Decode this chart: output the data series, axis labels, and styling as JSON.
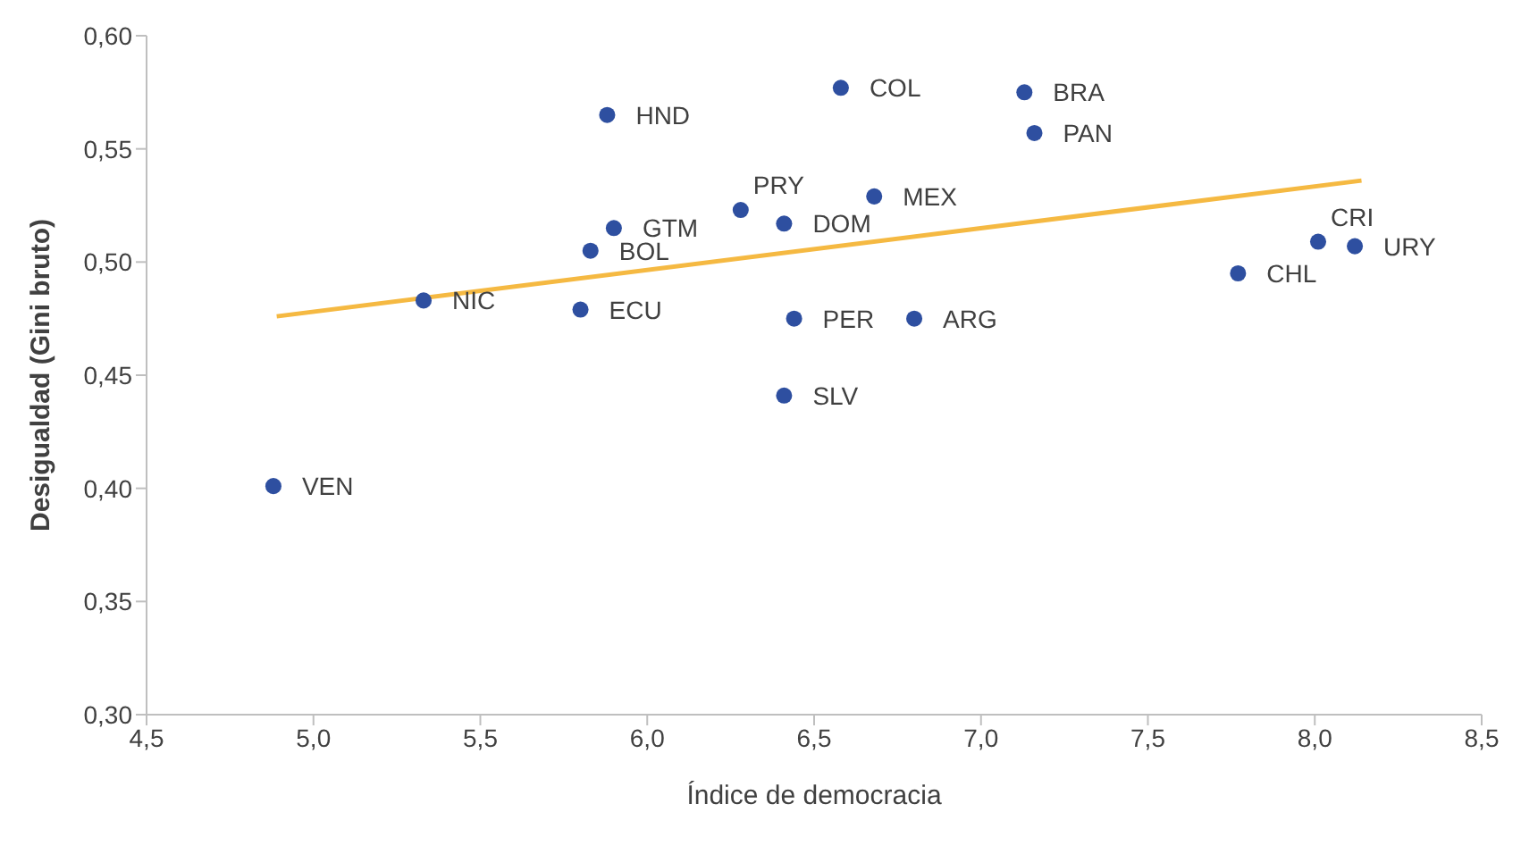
{
  "chart_data": {
    "type": "scatter",
    "xlabel": "Índice de democracia",
    "ylabel": "Desigualdad (Gini bruto)",
    "xlim": [
      4.5,
      8.5
    ],
    "xticks": [
      {
        "value": 4.5,
        "label": "4,5"
      },
      {
        "value": 5,
        "label": "5,0"
      },
      {
        "value": 5.5,
        "label": "5,5"
      },
      {
        "value": 6,
        "label": "6,0"
      },
      {
        "value": 6.5,
        "label": "6,5"
      },
      {
        "value": 7,
        "label": "7,0"
      },
      {
        "value": 7.5,
        "label": "7,5"
      },
      {
        "value": 8,
        "label": "8,0"
      },
      {
        "value": 8.5,
        "label": "8,5"
      }
    ],
    "ylim": [
      0.3,
      0.6
    ],
    "yticks": [
      {
        "value": 0.3,
        "label": "0,30"
      },
      {
        "value": 0.35,
        "label": "0,35"
      },
      {
        "value": 0.4,
        "label": "0,40"
      },
      {
        "value": 0.45,
        "label": "0,45"
      },
      {
        "value": 0.5,
        "label": "0,50"
      },
      {
        "value": 0.55,
        "label": "0,55"
      },
      {
        "value": 0.6,
        "label": "0,60"
      }
    ],
    "series": [
      {
        "marker": "circle",
        "color": "#2e4fa0",
        "x": [
          4.88,
          5.33,
          5.8,
          5.83,
          5.9,
          5.88,
          6.28,
          6.41,
          6.44,
          6.41,
          6.58,
          6.68,
          6.8,
          7.13,
          7.16,
          7.77,
          8.01,
          8.12
        ],
        "values": [
          0.401,
          0.483,
          0.479,
          0.505,
          0.515,
          0.565,
          0.523,
          0.517,
          0.475,
          0.441,
          0.577,
          0.529,
          0.475,
          0.575,
          0.557,
          0.495,
          0.509,
          0.507
        ]
      },
      {
        "type": "line",
        "marker": "none",
        "color": "#f5b942",
        "x": [
          4.89,
          8.14
        ],
        "values": [
          0.476,
          0.536
        ]
      }
    ],
    "annotations": [
      {
        "text": "VEN",
        "x": 4.88,
        "y": 0.401
      },
      {
        "text": "NIC",
        "x": 5.33,
        "y": 0.483
      },
      {
        "text": "ECU",
        "x": 5.8,
        "y": 0.479
      },
      {
        "text": "BOL",
        "x": 5.83,
        "y": 0.505
      },
      {
        "text": "GTM",
        "x": 5.9,
        "y": 0.515
      },
      {
        "text": "HND",
        "x": 5.88,
        "y": 0.565
      },
      {
        "text": "PRY",
        "x": 6.28,
        "y": 0.523
      },
      {
        "text": "DOM",
        "x": 6.41,
        "y": 0.517
      },
      {
        "text": "PER",
        "x": 6.44,
        "y": 0.475
      },
      {
        "text": "SLV",
        "x": 6.41,
        "y": 0.441
      },
      {
        "text": "COL",
        "x": 6.58,
        "y": 0.577
      },
      {
        "text": "MEX",
        "x": 6.68,
        "y": 0.529
      },
      {
        "text": "ARG",
        "x": 6.8,
        "y": 0.475
      },
      {
        "text": "BRA",
        "x": 7.13,
        "y": 0.575
      },
      {
        "text": "PAN",
        "x": 7.16,
        "y": 0.557
      },
      {
        "text": "CHL",
        "x": 7.77,
        "y": 0.495
      },
      {
        "text": "CRI",
        "x": 8.01,
        "y": 0.509
      },
      {
        "text": "URY",
        "x": 8.12,
        "y": 0.507
      }
    ]
  }
}
